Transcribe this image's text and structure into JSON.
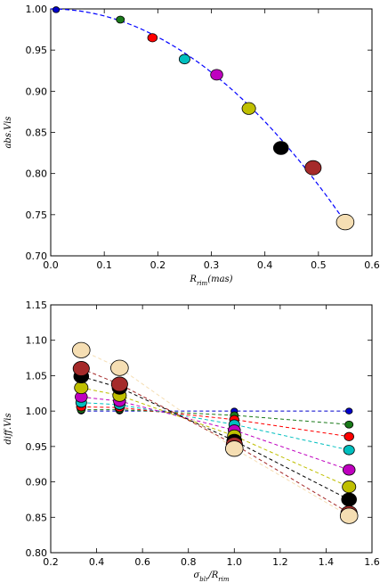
{
  "chart_data": [
    {
      "type": "scatter",
      "title": "",
      "xlabel": "R_rim (mas)",
      "ylabel": "abs.Vis",
      "xlim": [
        0.0,
        0.6
      ],
      "ylim": [
        0.7,
        1.0
      ],
      "xticks": [
        "0.0",
        "0.1",
        "0.2",
        "0.3",
        "0.4",
        "0.5",
        "0.6"
      ],
      "yticks": [
        "0.70",
        "0.75",
        "0.80",
        "0.85",
        "0.90",
        "0.95",
        "1.00"
      ],
      "grid": false,
      "fit_curve": {
        "style": "dashed",
        "color": "#0000ff",
        "x_range": [
          0.0,
          0.55
        ],
        "y_at_x0": 1.0,
        "y_at_xmax": 0.741
      },
      "points": [
        {
          "x": 0.01,
          "y": 0.999,
          "color": "#0000cc",
          "size": 1
        },
        {
          "x": 0.13,
          "y": 0.987,
          "color": "#1a7a1a",
          "size": 1.2
        },
        {
          "x": 0.19,
          "y": 0.965,
          "color": "#ff0000",
          "size": 1.4
        },
        {
          "x": 0.25,
          "y": 0.939,
          "color": "#00bfbf",
          "size": 1.6
        },
        {
          "x": 0.31,
          "y": 0.92,
          "color": "#bf00bf",
          "size": 1.8
        },
        {
          "x": 0.37,
          "y": 0.879,
          "color": "#bfbf00",
          "size": 2.0
        },
        {
          "x": 0.43,
          "y": 0.831,
          "color": "#000000",
          "size": 2.2
        },
        {
          "x": 0.49,
          "y": 0.807,
          "color": "#a52a2a",
          "size": 2.4
        },
        {
          "x": 0.55,
          "y": 0.741,
          "color": "#f5deb3",
          "size": 2.6
        }
      ]
    },
    {
      "type": "line",
      "title": "",
      "xlabel": "σ_blr / R_rim",
      "ylabel": "diff.Vis",
      "xlim": [
        0.2,
        1.6
      ],
      "ylim": [
        0.8,
        1.15
      ],
      "xticks": [
        "0.2",
        "0.4",
        "0.6",
        "0.8",
        "1.0",
        "1.2",
        "1.4",
        "1.6"
      ],
      "yticks": [
        "0.80",
        "0.85",
        "0.90",
        "0.95",
        "1.00",
        "1.05",
        "1.10",
        "1.15"
      ],
      "grid": false,
      "x": [
        0.333,
        0.5,
        1.0,
        1.5
      ],
      "series": [
        {
          "color": "#0000cc",
          "size": 1.0,
          "values": [
            1.0,
            1.0,
            1.0,
            1.0
          ]
        },
        {
          "color": "#1a7a1a",
          "size": 1.2,
          "values": [
            1.002,
            1.002,
            0.994,
            0.981
          ]
        },
        {
          "color": "#ff0000",
          "size": 1.4,
          "values": [
            1.006,
            1.005,
            0.988,
            0.964
          ]
        },
        {
          "color": "#00bfbf",
          "size": 1.6,
          "values": [
            1.012,
            1.009,
            0.981,
            0.945
          ]
        },
        {
          "color": "#bf00bf",
          "size": 1.8,
          "values": [
            1.02,
            1.014,
            0.973,
            0.917
          ]
        },
        {
          "color": "#bfbf00",
          "size": 2.0,
          "values": [
            1.033,
            1.022,
            0.965,
            0.893
          ]
        },
        {
          "color": "#000000",
          "size": 2.2,
          "values": [
            1.049,
            1.033,
            0.958,
            0.875
          ]
        },
        {
          "color": "#a52a2a",
          "size": 2.4,
          "values": [
            1.06,
            1.038,
            0.953,
            0.856
          ]
        },
        {
          "color": "#f5deb3",
          "size": 2.6,
          "values": [
            1.086,
            1.061,
            0.947,
            0.852
          ]
        }
      ]
    }
  ]
}
